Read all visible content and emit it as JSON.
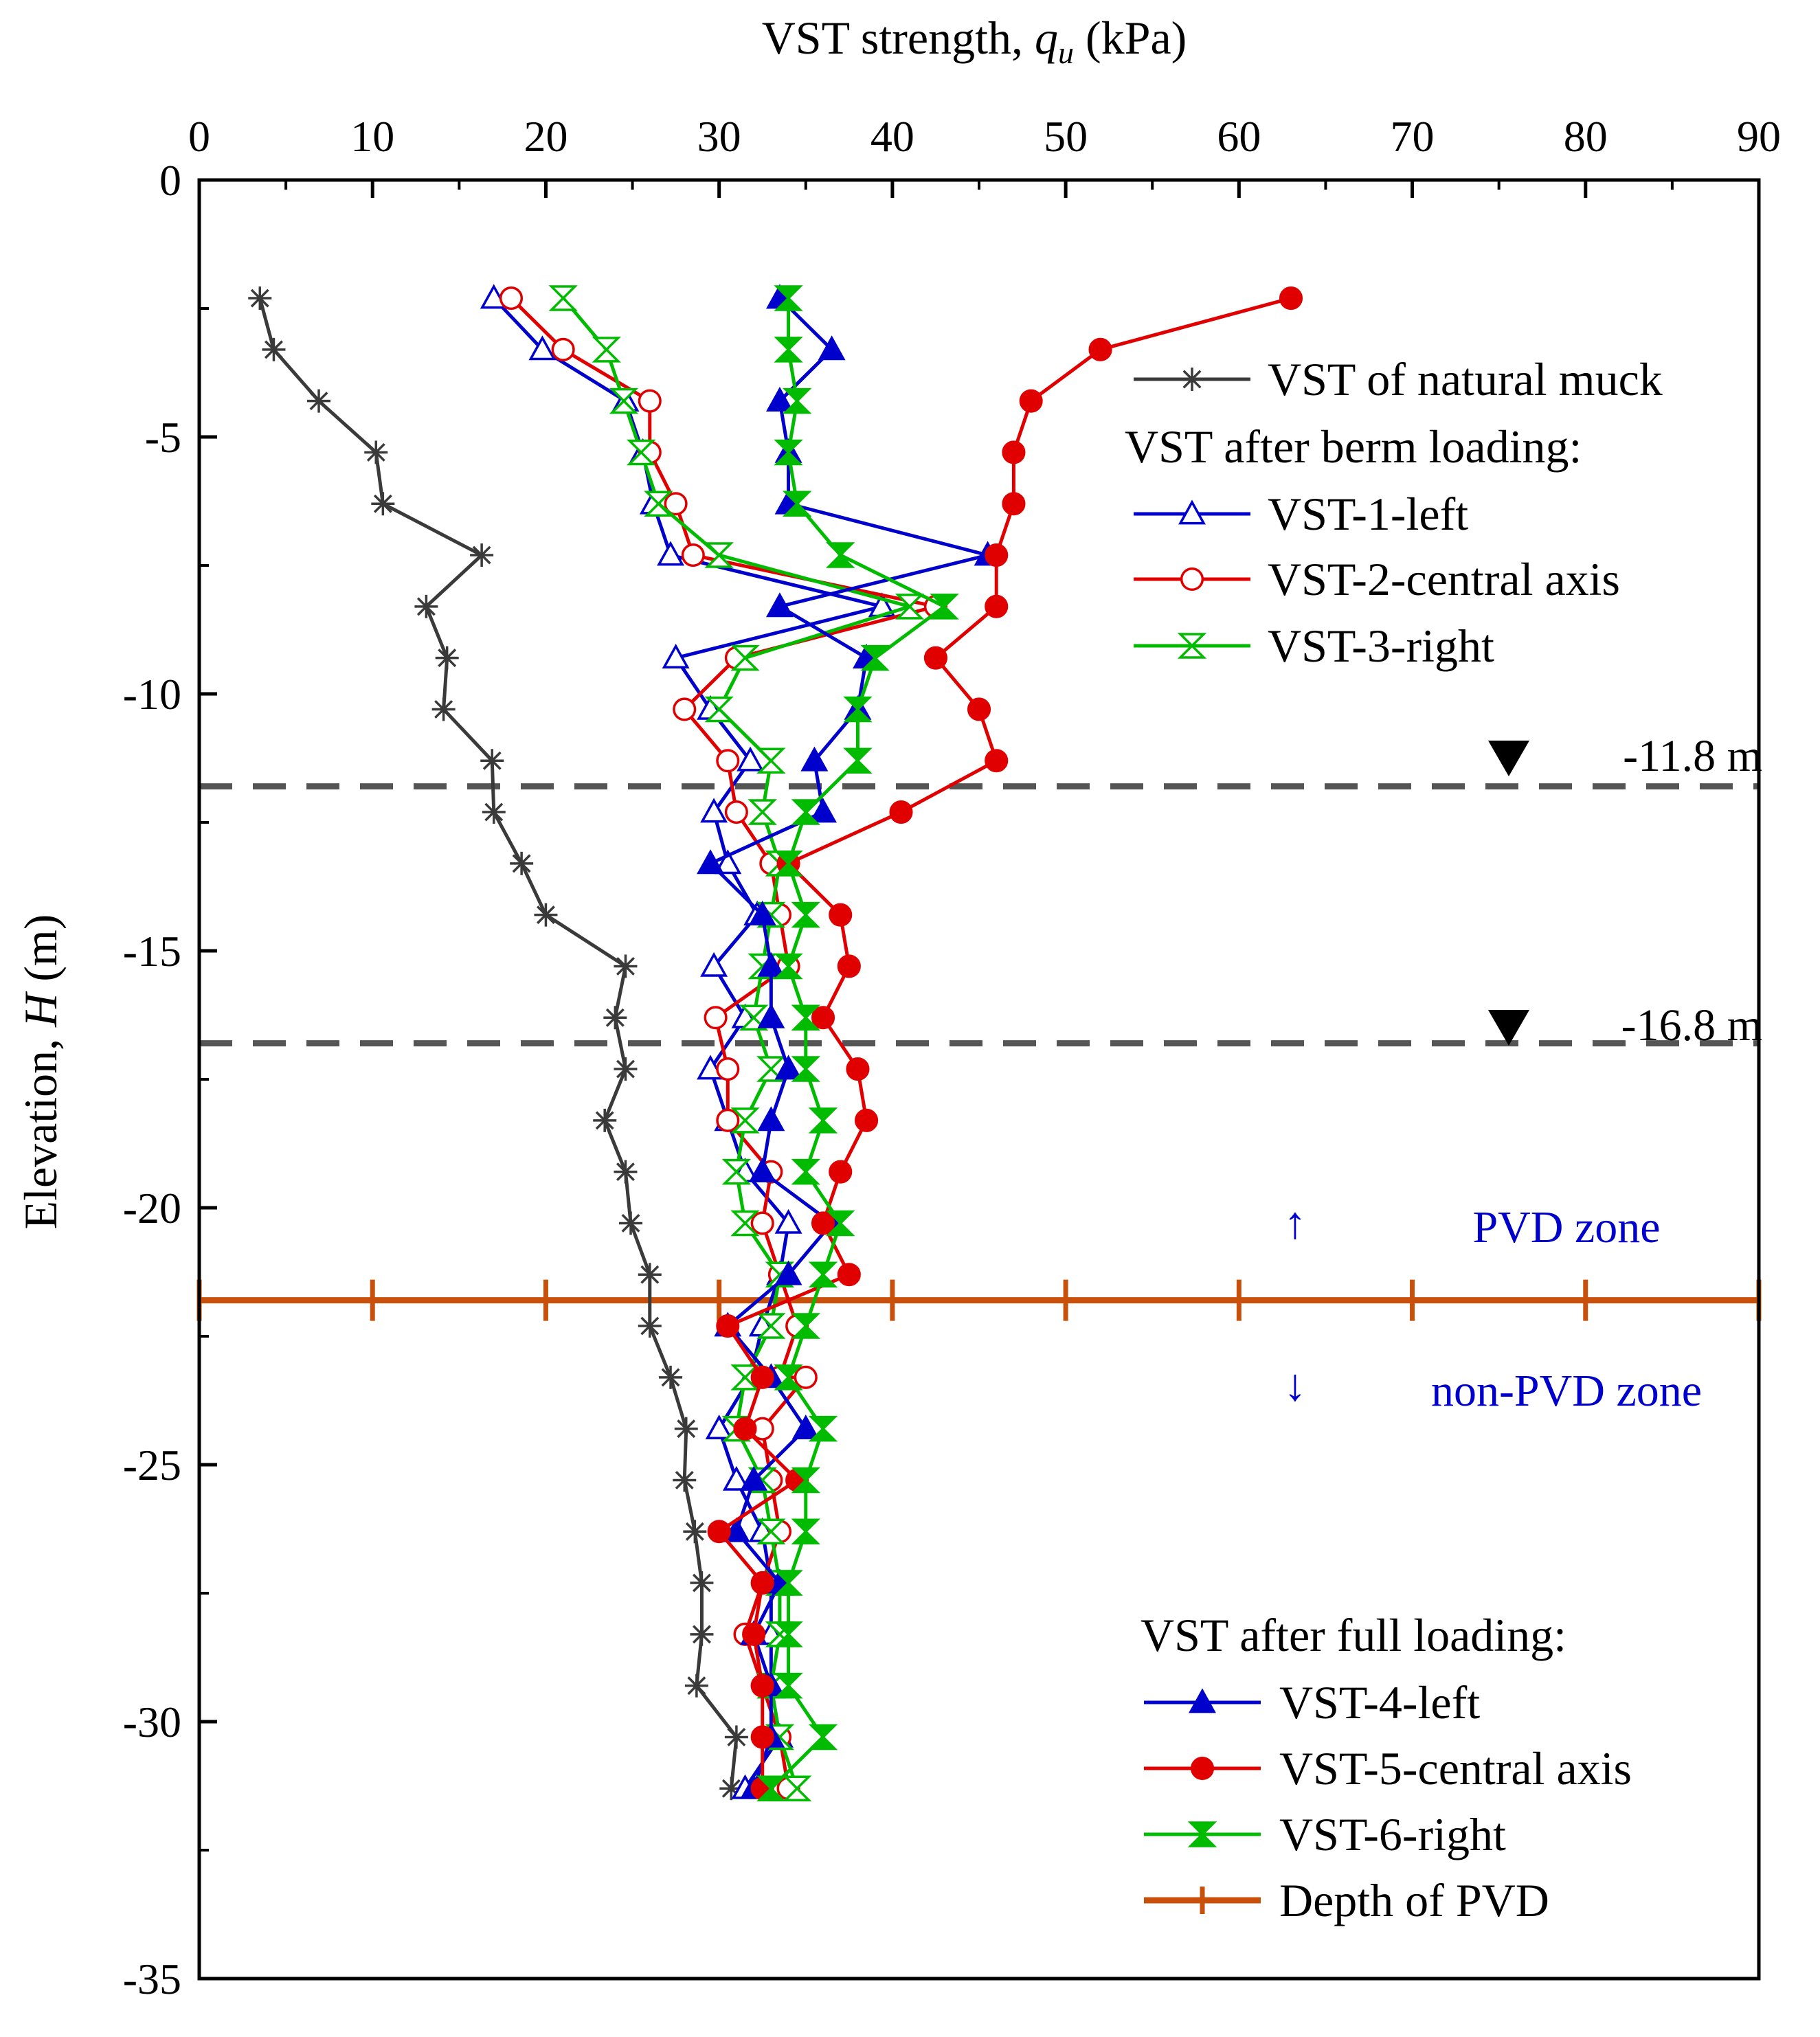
{
  "chart_data": {
    "type": "line",
    "x_axis": {
      "label_prefix": "VST strength, ",
      "label_symbol": "q",
      "label_subscript": "u",
      "label_unit": " (kPa)",
      "position": "top",
      "range": [
        0,
        90
      ],
      "ticks": [
        0,
        10,
        20,
        30,
        40,
        50,
        60,
        70,
        80,
        90
      ],
      "tick_labels": [
        "0",
        "10",
        "20",
        "30",
        "40",
        "50",
        "60",
        "70",
        "80",
        "90"
      ]
    },
    "y_axis": {
      "label_prefix": "Elevation, ",
      "label_symbol": "H",
      "label_unit": " (m)",
      "range": [
        -35,
        0
      ],
      "ticks": [
        0,
        -5,
        -10,
        -15,
        -20,
        -25,
        -30,
        -35
      ],
      "tick_labels": [
        "0",
        "-5",
        "-10",
        "-15",
        "-20",
        "-25",
        "-30",
        "-35"
      ]
    },
    "legend": {
      "group_natural_entry": "VST of natural muck",
      "group_berm_title": "VST after berm loading:",
      "group_full_title": "VST after full loading:",
      "placement_upper": "top-right",
      "placement_lower": "bottom-right"
    },
    "series": [
      {
        "name": "VST of natural muck",
        "color": "#3a3a3a",
        "marker": "asterisk",
        "points": [
          [
            3.5,
            -2.3
          ],
          [
            4.3,
            -3.3
          ],
          [
            6.9,
            -4.3
          ],
          [
            10.2,
            -5.3
          ],
          [
            10.6,
            -6.3
          ],
          [
            16.3,
            -7.3
          ],
          [
            13.1,
            -8.3
          ],
          [
            14.3,
            -9.3
          ],
          [
            14.1,
            -10.3
          ],
          [
            16.9,
            -11.3
          ],
          [
            17.0,
            -12.3
          ],
          [
            18.6,
            -13.3
          ],
          [
            20.0,
            -14.3
          ],
          [
            24.6,
            -15.3
          ],
          [
            24.0,
            -16.3
          ],
          [
            24.6,
            -17.3
          ],
          [
            23.4,
            -18.3
          ],
          [
            24.6,
            -19.3
          ],
          [
            24.9,
            -20.3
          ],
          [
            26.0,
            -21.3
          ],
          [
            26.0,
            -22.3
          ],
          [
            27.2,
            -23.3
          ],
          [
            28.1,
            -24.3
          ],
          [
            28.0,
            -25.3
          ],
          [
            28.6,
            -26.3
          ],
          [
            29.0,
            -27.3
          ],
          [
            29.0,
            -28.3
          ],
          [
            28.7,
            -29.3
          ],
          [
            31.0,
            -30.3
          ],
          [
            30.7,
            -31.3
          ]
        ]
      },
      {
        "name": "VST-1-left",
        "color": "#0000cc",
        "marker": "triangle-open",
        "points": [
          [
            17.0,
            -2.3
          ],
          [
            19.8,
            -3.3
          ],
          [
            24.6,
            -4.3
          ],
          [
            25.6,
            -5.3
          ],
          [
            26.2,
            -6.3
          ],
          [
            27.2,
            -7.3
          ],
          [
            39.4,
            -8.3
          ],
          [
            27.5,
            -9.3
          ],
          [
            29.5,
            -10.3
          ],
          [
            31.8,
            -11.3
          ],
          [
            29.7,
            -12.3
          ],
          [
            30.5,
            -13.3
          ],
          [
            32.2,
            -14.3
          ],
          [
            29.7,
            -15.3
          ],
          [
            31.5,
            -16.3
          ],
          [
            29.5,
            -17.3
          ],
          [
            30.5,
            -18.3
          ],
          [
            31.5,
            -19.3
          ],
          [
            34.0,
            -20.3
          ],
          [
            33.5,
            -21.3
          ],
          [
            32.5,
            -22.3
          ],
          [
            31.8,
            -23.3
          ],
          [
            30.0,
            -24.3
          ],
          [
            31.0,
            -25.3
          ],
          [
            32.5,
            -26.3
          ],
          [
            33.0,
            -27.3
          ],
          [
            33.0,
            -28.3
          ],
          [
            33.0,
            -29.3
          ],
          [
            33.5,
            -30.3
          ],
          [
            31.5,
            -31.3
          ]
        ]
      },
      {
        "name": "VST-2-central axis",
        "color": "#e00000",
        "marker": "circle-open",
        "points": [
          [
            18.0,
            -2.3
          ],
          [
            21.0,
            -3.3
          ],
          [
            26.0,
            -4.3
          ],
          [
            26.0,
            -5.3
          ],
          [
            27.5,
            -6.3
          ],
          [
            28.5,
            -7.3
          ],
          [
            42.5,
            -8.3
          ],
          [
            31.0,
            -9.3
          ],
          [
            28.0,
            -10.3
          ],
          [
            30.5,
            -11.3
          ],
          [
            31.0,
            -12.3
          ],
          [
            33.0,
            -13.3
          ],
          [
            33.5,
            -14.3
          ],
          [
            34.0,
            -15.3
          ],
          [
            29.8,
            -16.3
          ],
          [
            30.5,
            -17.3
          ],
          [
            30.5,
            -18.3
          ],
          [
            33.0,
            -19.3
          ],
          [
            32.5,
            -20.3
          ],
          [
            33.5,
            -21.3
          ],
          [
            34.5,
            -22.3
          ],
          [
            33.5,
            -23.3
          ],
          [
            35.0,
            -23.3
          ],
          [
            32.5,
            -24.3
          ],
          [
            33.0,
            -25.3
          ],
          [
            33.5,
            -26.3
          ],
          [
            32.5,
            -27.3
          ],
          [
            31.5,
            -28.3
          ],
          [
            32.5,
            -29.3
          ],
          [
            33.5,
            -30.3
          ],
          [
            34.0,
            -31.3
          ]
        ]
      },
      {
        "name": "VST-3-right",
        "color": "#00bb00",
        "marker": "hourglass-open",
        "points": [
          [
            21.0,
            -2.3
          ],
          [
            23.5,
            -3.3
          ],
          [
            24.5,
            -4.3
          ],
          [
            25.5,
            -5.3
          ],
          [
            26.5,
            -6.3
          ],
          [
            30.0,
            -7.3
          ],
          [
            41.0,
            -8.3
          ],
          [
            31.5,
            -9.3
          ],
          [
            30.0,
            -10.3
          ],
          [
            33.0,
            -11.3
          ],
          [
            32.5,
            -12.3
          ],
          [
            33.5,
            -13.3
          ],
          [
            33.0,
            -14.3
          ],
          [
            32.5,
            -15.3
          ],
          [
            32.0,
            -16.3
          ],
          [
            33.0,
            -17.3
          ],
          [
            31.5,
            -18.3
          ],
          [
            31.0,
            -19.3
          ],
          [
            31.5,
            -20.3
          ],
          [
            33.5,
            -21.3
          ],
          [
            33.0,
            -22.3
          ],
          [
            31.5,
            -23.3
          ],
          [
            31.0,
            -24.3
          ],
          [
            32.5,
            -25.3
          ],
          [
            33.0,
            -26.3
          ],
          [
            33.5,
            -27.3
          ],
          [
            33.5,
            -28.3
          ],
          [
            33.0,
            -29.3
          ],
          [
            33.5,
            -30.3
          ],
          [
            34.5,
            -31.3
          ]
        ]
      },
      {
        "name": "VST-4-left",
        "color": "#0000cc",
        "marker": "triangle-filled",
        "points": [
          [
            33.5,
            -2.3
          ],
          [
            36.5,
            -3.3
          ],
          [
            33.5,
            -4.3
          ],
          [
            34.0,
            -5.3
          ],
          [
            34.0,
            -6.3
          ],
          [
            45.5,
            -7.3
          ],
          [
            33.5,
            -8.3
          ],
          [
            38.5,
            -9.3
          ],
          [
            38.0,
            -10.3
          ],
          [
            35.5,
            -11.3
          ],
          [
            36.0,
            -12.3
          ],
          [
            29.5,
            -13.3
          ],
          [
            32.5,
            -14.3
          ],
          [
            33.0,
            -15.3
          ],
          [
            33.0,
            -16.3
          ],
          [
            34.0,
            -17.3
          ],
          [
            33.0,
            -18.3
          ],
          [
            32.5,
            -19.3
          ],
          [
            36.5,
            -20.3
          ],
          [
            34.0,
            -21.3
          ],
          [
            30.5,
            -22.3
          ],
          [
            33.0,
            -23.3
          ],
          [
            35.0,
            -24.3
          ],
          [
            32.0,
            -25.3
          ],
          [
            31.0,
            -26.3
          ],
          [
            33.5,
            -27.3
          ],
          [
            32.0,
            -28.3
          ],
          [
            33.0,
            -29.3
          ],
          [
            33.0,
            -30.3
          ],
          [
            32.0,
            -31.3
          ]
        ]
      },
      {
        "name": "VST-5-central axis",
        "color": "#e00000",
        "marker": "circle-filled",
        "points": [
          [
            63.0,
            -2.3
          ],
          [
            52.0,
            -3.3
          ],
          [
            48.0,
            -4.3
          ],
          [
            47.0,
            -5.3
          ],
          [
            47.0,
            -6.3
          ],
          [
            46.0,
            -7.3
          ],
          [
            46.0,
            -8.3
          ],
          [
            42.5,
            -9.3
          ],
          [
            45.0,
            -10.3
          ],
          [
            46.0,
            -11.3
          ],
          [
            40.5,
            -12.3
          ],
          [
            34.0,
            -13.3
          ],
          [
            37.0,
            -14.3
          ],
          [
            37.5,
            -15.3
          ],
          [
            36.0,
            -16.3
          ],
          [
            38.0,
            -17.3
          ],
          [
            38.5,
            -18.3
          ],
          [
            37.0,
            -19.3
          ],
          [
            36.0,
            -20.3
          ],
          [
            37.5,
            -21.3
          ],
          [
            30.5,
            -22.3
          ],
          [
            32.5,
            -23.3
          ],
          [
            31.5,
            -24.3
          ],
          [
            34.5,
            -25.3
          ],
          [
            30.0,
            -26.3
          ],
          [
            32.5,
            -27.3
          ],
          [
            32.0,
            -28.3
          ],
          [
            32.5,
            -29.3
          ],
          [
            32.5,
            -30.3
          ],
          [
            32.5,
            -31.3
          ]
        ]
      },
      {
        "name": "VST-6-right",
        "color": "#00bb00",
        "marker": "hourglass-filled",
        "points": [
          [
            34.0,
            -2.3
          ],
          [
            34.0,
            -3.3
          ],
          [
            34.5,
            -4.3
          ],
          [
            34.0,
            -5.3
          ],
          [
            34.5,
            -6.3
          ],
          [
            37.0,
            -7.3
          ],
          [
            43.0,
            -8.3
          ],
          [
            39.0,
            -9.3
          ],
          [
            38.0,
            -10.3
          ],
          [
            38.0,
            -11.3
          ],
          [
            35.0,
            -12.3
          ],
          [
            34.0,
            -13.3
          ],
          [
            35.0,
            -14.3
          ],
          [
            34.0,
            -15.3
          ],
          [
            35.0,
            -16.3
          ],
          [
            35.0,
            -17.3
          ],
          [
            36.0,
            -18.3
          ],
          [
            35.0,
            -19.3
          ],
          [
            37.0,
            -20.3
          ],
          [
            36.0,
            -21.3
          ],
          [
            35.0,
            -22.3
          ],
          [
            34.0,
            -23.3
          ],
          [
            36.0,
            -24.3
          ],
          [
            35.0,
            -25.3
          ],
          [
            35.0,
            -26.3
          ],
          [
            34.0,
            -27.3
          ],
          [
            34.0,
            -28.3
          ],
          [
            34.0,
            -29.3
          ],
          [
            36.0,
            -30.3
          ],
          [
            33.0,
            -31.3
          ]
        ]
      }
    ],
    "pvd_depth": {
      "name": "Depth of PVD",
      "color": "#c8500a",
      "elevation": -21.8,
      "tick_x": [
        0,
        10,
        20,
        30,
        40,
        50,
        60,
        70,
        80,
        90
      ]
    },
    "reference_lines": [
      {
        "elevation": -11.8,
        "label": "-11.8 m",
        "color": "#555555"
      },
      {
        "elevation": -16.8,
        "label": "-16.8 m",
        "color": "#555555"
      }
    ],
    "zone_labels": {
      "pvd_zone": "PVD zone",
      "pvd_arrow": "↑",
      "non_pvd_zone": "non-PVD zone",
      "non_pvd_arrow": "↓",
      "color": "#0000cc"
    }
  }
}
